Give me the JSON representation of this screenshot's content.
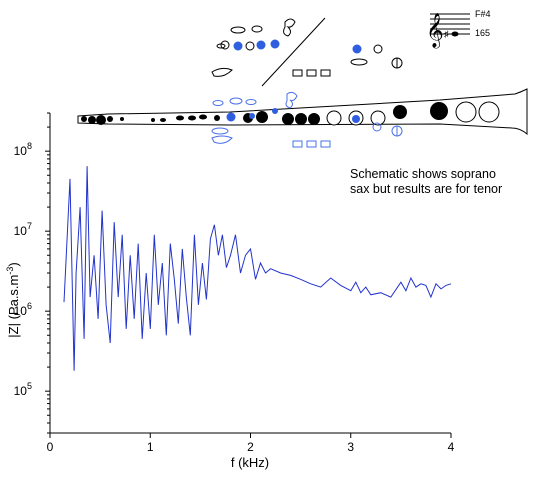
{
  "chart_data": {
    "type": "line",
    "title": "",
    "xlabel": "f (kHz)",
    "ylabel": "|Z| (Pa.s.m",
    "ylabel_sup": "-3",
    "ylabel_close": ")",
    "xlim": [
      0,
      4
    ],
    "ylim": [
      30000,
      300000000
    ],
    "yscale": "log",
    "grid": false,
    "x_ticks": [
      {
        "value": 0,
        "label": "0"
      },
      {
        "value": 1,
        "label": "1"
      },
      {
        "value": 2,
        "label": "2"
      },
      {
        "value": 3,
        "label": "3"
      },
      {
        "value": 4,
        "label": "4"
      }
    ],
    "y_ticks": [
      {
        "value": 100000,
        "base": "10",
        "exp": "5"
      },
      {
        "value": 1000000,
        "base": "10",
        "exp": "6"
      },
      {
        "value": 10000000,
        "base": "10",
        "exp": "7"
      },
      {
        "value": 100000000,
        "base": "10",
        "exp": "8"
      }
    ],
    "series": [
      {
        "color": "#2233cc",
        "x": [
          0.14,
          0.2,
          0.24,
          0.26,
          0.3,
          0.34,
          0.37,
          0.4,
          0.44,
          0.48,
          0.52,
          0.56,
          0.6,
          0.64,
          0.68,
          0.72,
          0.76,
          0.8,
          0.84,
          0.88,
          0.92,
          0.96,
          1.0,
          1.04,
          1.08,
          1.12,
          1.16,
          1.2,
          1.24,
          1.28,
          1.32,
          1.36,
          1.4,
          1.44,
          1.48,
          1.52,
          1.56,
          1.6,
          1.64,
          1.68,
          1.72,
          1.76,
          1.8,
          1.85,
          1.9,
          1.95,
          2.0,
          2.05,
          2.1,
          2.15,
          2.2,
          2.3,
          2.4,
          2.5,
          2.6,
          2.7,
          2.8,
          2.9,
          3.0,
          3.05,
          3.1,
          3.15,
          3.2,
          3.3,
          3.4,
          3.5,
          3.55,
          3.6,
          3.65,
          3.7,
          3.75,
          3.8,
          3.85,
          3.9,
          3.95,
          4.0
        ],
        "y": [
          1300000,
          45000000,
          180000,
          3000000,
          20000000,
          450000,
          65000000,
          1500000,
          5000000,
          800000,
          18000000,
          1200000,
          400000,
          13000000,
          1500000,
          9000000,
          600000,
          5000000,
          800000,
          7000000,
          450000,
          3000000,
          600000,
          9000000,
          1200000,
          4000000,
          500000,
          7000000,
          2500000,
          700000,
          6000000,
          1500000,
          500000,
          9000000,
          1200000,
          4000000,
          1400000,
          8000000,
          12000000,
          5000000,
          9000000,
          3500000,
          5000000,
          9000000,
          3000000,
          5000000,
          6000000,
          2500000,
          4000000,
          3000000,
          3400000,
          3000000,
          2800000,
          2500000,
          2200000,
          2000000,
          2600000,
          2100000,
          1800000,
          2300000,
          1700000,
          2000000,
          1600000,
          1700000,
          1500000,
          2300000,
          1800000,
          2600000,
          2000000,
          2200000,
          2100000,
          1500000,
          2200000,
          1900000,
          2100000,
          2200000
        ]
      }
    ],
    "annotations": [
      "Schematic shows soprano",
      "sax but results are for tenor"
    ]
  },
  "diagram": {
    "note_name": "F#4",
    "fingering_number": "165"
  }
}
